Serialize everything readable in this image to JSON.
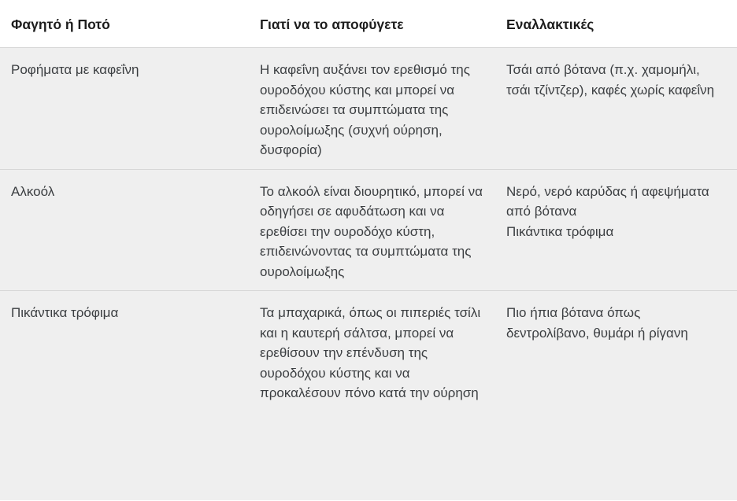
{
  "table": {
    "headers": [
      "Φαγητό ή Ποτό",
      "Γιατί να το αποφύγετε",
      "Εναλλακτικές"
    ],
    "rows": [
      {
        "food": "Ροφήματα με καφεΐνη",
        "reason": "Η καφεΐνη αυξάνει τον ερεθισμό της ουροδόχου κύστης και μπορεί να επιδεινώσει τα συμπτώματα της ουρολοίμωξης (συχνή ούρηση, δυσφορία)",
        "alternatives": "Τσάι από βότανα (π.χ. χαμομήλι, τσάι τζίντζερ), καφές χωρίς καφεΐνη"
      },
      {
        "food": "Αλκοόλ",
        "reason": "Το αλκοόλ είναι διουρητικό, μπορεί να οδηγήσει σε αφυδάτωση και να ερεθίσει την ουροδόχο κύστη, επιδεινώνοντας τα συμπτώματα της ουρολοίμωξης",
        "alternatives": "Νερό, νερό καρύδας ή αφεψήματα από βότανα\nΠικάντικα τρόφιμα"
      },
      {
        "food": "Πικάντικα τρόφιμα",
        "reason": "Τα μπαχαρικά, όπως οι πιπεριές τσίλι και η καυτερή σάλτσα, μπορεί να ερεθίσουν την επένδυση της ουροδόχου κύστης και να προκαλέσουν πόνο κατά την ούρηση",
        "alternatives": "Πιο ήπια βότανα όπως δεντρολίβανο, θυμάρι ή ρίγανη"
      }
    ]
  },
  "colors": {
    "row_background": "#efefef",
    "separator": "#d7d7d7",
    "body_text": "#3b3e41",
    "header_text": "#1d1d1d"
  }
}
